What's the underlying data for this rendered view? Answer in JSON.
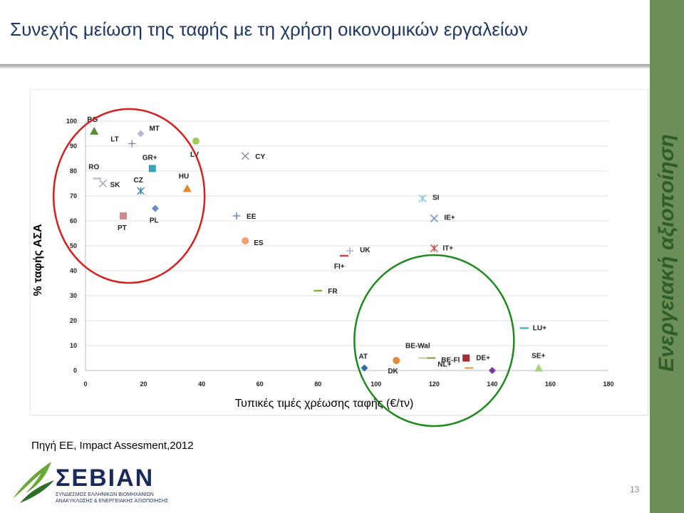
{
  "slide": {
    "title": "Συνεχής μείωση της ταφής με τη χρήση οικονομικών εργαλείων",
    "side_label": "Ενεργειακή αξιοποίηση",
    "source": "Πηγή ΕΕ, Impact Assesment,2012",
    "page_number": "13",
    "accent_color": "#6b8f57",
    "title_color": "#1f3864"
  },
  "logo": {
    "name": "ΣΕΒΙΑΝ",
    "subtitle_line1": "ΣΥΝΔΕΣΜΟΣ ΕΛΛΗΝΙΚΩΝ ΒΙΟΜΗΧΑΝΙΩΝ",
    "subtitle_line2": "ΑΝΑΚΥΚΛΩΣΗΣ & ΕΝΕΡΓΕΙΑΚΗΣ ΑΞΙΟΠΟΙΗΣΗΣ"
  },
  "chart_data": {
    "type": "scatter",
    "xlabel": "Τυπικές τιμές χρέωσης ταφής (€/τν)",
    "ylabel": "% ταφής ΑΣΑ",
    "xlim": [
      0,
      180
    ],
    "ylim": [
      0,
      100
    ],
    "xticks": [
      0,
      20,
      40,
      60,
      80,
      100,
      120,
      140,
      160,
      180
    ],
    "yticks": [
      0,
      10,
      20,
      30,
      40,
      50,
      60,
      70,
      80,
      90,
      100
    ],
    "grid": "horizontal",
    "points": [
      {
        "label": "BG",
        "x": 3,
        "y": 96,
        "marker": "triangle",
        "color": "#5a8a3c"
      },
      {
        "label": "MT",
        "x": 19,
        "y": 95,
        "marker": "diamond",
        "color": "#b9b9d6"
      },
      {
        "label": "LT",
        "x": 16,
        "y": 91,
        "marker": "plus",
        "color": "#8a8ab0"
      },
      {
        "label": "LV",
        "x": 38,
        "y": 92,
        "marker": "circle",
        "color": "#9acd5a"
      },
      {
        "label": "GR+",
        "x": 23,
        "y": 81,
        "marker": "square",
        "color": "#3aa0b8"
      },
      {
        "label": "RO",
        "x": 4,
        "y": 77,
        "marker": "dash",
        "color": "#c0c0c0"
      },
      {
        "label": "SK",
        "x": 6,
        "y": 75,
        "marker": "cross",
        "color": "#a0a0c8"
      },
      {
        "label": "CZ",
        "x": 19,
        "y": 72,
        "marker": "asterisk",
        "color": "#3a8ab0"
      },
      {
        "label": "HU",
        "x": 35,
        "y": 73,
        "marker": "triangle",
        "color": "#e08a2a"
      },
      {
        "label": "CY",
        "x": 55,
        "y": 86,
        "marker": "cross",
        "color": "#8a8ab0"
      },
      {
        "label": "PT",
        "x": 13,
        "y": 62,
        "marker": "square",
        "color": "#d08a8a"
      },
      {
        "label": "PL",
        "x": 24,
        "y": 65,
        "marker": "diamond",
        "color": "#6a8ac8"
      },
      {
        "label": "EE",
        "x": 52,
        "y": 62,
        "marker": "plus",
        "color": "#6a8ac8"
      },
      {
        "label": "ES",
        "x": 55,
        "y": 52,
        "marker": "circle",
        "color": "#f0a070"
      },
      {
        "label": "SI",
        "x": 116,
        "y": 69,
        "marker": "asterisk",
        "color": "#8ac8d8"
      },
      {
        "label": "IE+",
        "x": 120,
        "y": 61,
        "marker": "cross",
        "color": "#6a8ac8"
      },
      {
        "label": "UK",
        "x": 91,
        "y": 48,
        "marker": "plus",
        "color": "#a0b0d8"
      },
      {
        "label": "IT+",
        "x": 120,
        "y": 49,
        "marker": "asterisk",
        "color": "#d04a4a"
      },
      {
        "label": "FI+",
        "x": 89,
        "y": 46,
        "marker": "dash",
        "color": "#c04040"
      },
      {
        "label": "FR",
        "x": 80,
        "y": 32,
        "marker": "dash",
        "color": "#8ab03a"
      },
      {
        "label": "LU+",
        "x": 151,
        "y": 17,
        "marker": "dash",
        "color": "#4ab0d0"
      },
      {
        "label": "BE-Wal",
        "x": 116,
        "y": 5,
        "marker": "dash",
        "color": "#c8d8a0"
      },
      {
        "label": "AT",
        "x": 96,
        "y": 1,
        "marker": "diamond",
        "color": "#3a6a9a"
      },
      {
        "label": "DK",
        "x": 107,
        "y": 4,
        "marker": "circle",
        "color": "#e08a3a"
      },
      {
        "label": "BE-Fl",
        "x": 119,
        "y": 5,
        "marker": "dash",
        "color": "#8ab040"
      },
      {
        "label": "NL+",
        "x": 132,
        "y": 1,
        "marker": "dash",
        "color": "#f0a050"
      },
      {
        "label": "DE+",
        "x": 131,
        "y": 5,
        "marker": "square",
        "color": "#a03030"
      },
      {
        "label": "DE+",
        "x": 140,
        "y": 0,
        "marker": "diamond",
        "color": "#7a3aa0"
      },
      {
        "label": "SE+",
        "x": 156,
        "y": 1,
        "marker": "triangle",
        "color": "#a8d080"
      }
    ],
    "annotations": [
      {
        "shape": "circle",
        "color": "#d42020",
        "cx": 15,
        "cy": 70
      },
      {
        "shape": "circle",
        "color": "#1e8a1e",
        "cx": 120,
        "cy": 12
      }
    ]
  }
}
